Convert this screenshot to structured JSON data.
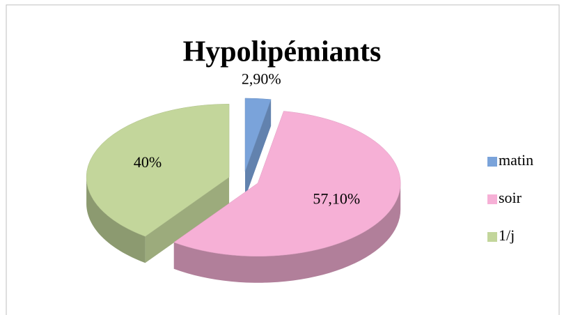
{
  "chart_data": {
    "type": "pie",
    "title": "Hypolipémiants",
    "categories": [
      "matin",
      "soir",
      "1/j"
    ],
    "values": [
      2.9,
      57.1,
      40
    ],
    "value_labels": [
      "2,90%",
      "57,10%",
      "40%"
    ],
    "colors": [
      "#7aa3da",
      "#f6b0d6",
      "#c3d69b"
    ],
    "legend": "right"
  }
}
